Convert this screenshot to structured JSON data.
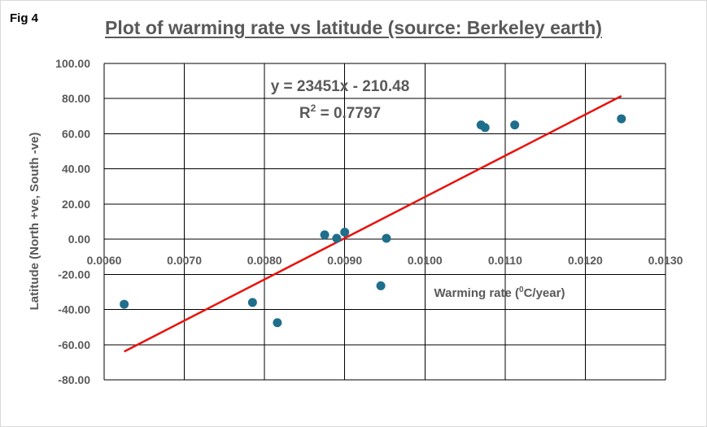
{
  "figure_label": "Fig 4",
  "chart_data": {
    "type": "scatter",
    "title": "Plot of warming  rate vs latitude (source: Berkeley earth)",
    "xlabel_pre": "Warming rate (",
    "xlabel_sup": "0",
    "xlabel_post": "C/year)",
    "ylabel": "Latitude (North +ve, South -ve)",
    "xlim": [
      0.006,
      0.013
    ],
    "ylim": [
      -80,
      100
    ],
    "x_ticks": [
      0.006,
      0.007,
      0.008,
      0.009,
      0.01,
      0.011,
      0.012,
      0.013
    ],
    "x_tick_labels": [
      "0.0060",
      "0.0070",
      "0.0080",
      "0.0090",
      "0.0100",
      "0.0110",
      "0.0120",
      "0.0130"
    ],
    "y_ticks": [
      100,
      80,
      60,
      40,
      20,
      0,
      -20,
      -40,
      -60,
      -80
    ],
    "y_tick_labels": [
      "100.00",
      "80.00",
      "60.00",
      "40.00",
      "20.00",
      "0.00",
      "-20.00",
      "-40.00",
      "-60.00",
      "-80.00"
    ],
    "grid": true,
    "points": [
      {
        "x": 0.00625,
        "y": -37
      },
      {
        "x": 0.00785,
        "y": -36
      },
      {
        "x": 0.00816,
        "y": -47.5
      },
      {
        "x": 0.00875,
        "y": 2.5
      },
      {
        "x": 0.0089,
        "y": 0.5
      },
      {
        "x": 0.009,
        "y": 4
      },
      {
        "x": 0.00945,
        "y": -26.5
      },
      {
        "x": 0.00952,
        "y": 0.5
      },
      {
        "x": 0.0107,
        "y": 65
      },
      {
        "x": 0.01075,
        "y": 63.5
      },
      {
        "x": 0.01112,
        "y": 65
      },
      {
        "x": 0.01245,
        "y": 68.5
      }
    ],
    "trendline": {
      "slope": 23451,
      "intercept": -210.48,
      "x_range": [
        0.00625,
        0.01245
      ],
      "equation": "y = 23451x - 210.48",
      "r2_prefix": "R",
      "r2_sup": "2",
      "r2_value": " = 0.7797"
    },
    "colors": {
      "marker": "#1f6e8c",
      "trendline": "#e8120c",
      "grid": "#000000",
      "text": "#595959"
    }
  }
}
